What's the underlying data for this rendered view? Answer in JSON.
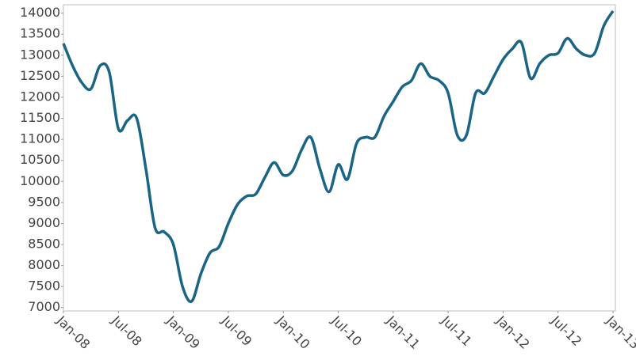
{
  "chart_data": {
    "type": "line",
    "x": [
      "Jan-08",
      "Feb-08",
      "Mar-08",
      "Apr-08",
      "May-08",
      "Jun-08",
      "Jul-08",
      "Aug-08",
      "Sep-08",
      "Oct-08",
      "Nov-08",
      "Dec-08",
      "Jan-09",
      "Feb-09",
      "Mar-09",
      "Apr-09",
      "May-09",
      "Jun-09",
      "Jul-09",
      "Aug-09",
      "Sep-09",
      "Oct-09",
      "Nov-09",
      "Dec-09",
      "Jan-10",
      "Feb-10",
      "Mar-10",
      "Apr-10",
      "May-10",
      "Jun-10",
      "Jul-10",
      "Aug-10",
      "Sep-10",
      "Oct-10",
      "Nov-10",
      "Dec-10",
      "Jan-11",
      "Feb-11",
      "Mar-11",
      "Apr-11",
      "May-11",
      "Jun-11",
      "Jul-11",
      "Aug-11",
      "Sep-11",
      "Oct-11",
      "Nov-11",
      "Dec-11",
      "Jan-12",
      "Feb-12",
      "Mar-12",
      "Apr-12",
      "May-12",
      "Jun-12",
      "Jul-12",
      "Aug-12",
      "Sep-12",
      "Oct-12",
      "Nov-12",
      "Dec-12",
      "Jan-13"
    ],
    "series": [
      {
        "color": "#1a6485",
        "values": [
          13280,
          12750,
          12350,
          12200,
          12750,
          12600,
          11250,
          11450,
          11500,
          10300,
          8900,
          8800,
          8500,
          7500,
          7150,
          7800,
          8300,
          8450,
          9000,
          9450,
          9650,
          9700,
          10100,
          10450,
          10150,
          10250,
          10750,
          11050,
          10300,
          9750,
          10400,
          10050,
          10900,
          11050,
          11050,
          11550,
          11900,
          12250,
          12400,
          12800,
          12500,
          12400,
          12100,
          11100,
          11100,
          12100,
          12100,
          12500,
          12900,
          13150,
          13300,
          12450,
          12800,
          13000,
          13050,
          13400,
          13150,
          13000,
          13050,
          13700,
          14050
        ]
      }
    ],
    "xticks": [
      "Jan-08",
      "Jul-08",
      "Jan-09",
      "Jul-09",
      "Jan-10",
      "Jul-10",
      "Jan-11",
      "Jul-11",
      "Jan-12",
      "Jul-12",
      "Jan-13"
    ],
    "ylim": [
      6920,
      14200
    ],
    "yticks": [
      7000,
      7500,
      8000,
      8500,
      9000,
      9500,
      10000,
      10500,
      11000,
      11500,
      12000,
      12500,
      13000,
      13500,
      14000
    ]
  }
}
